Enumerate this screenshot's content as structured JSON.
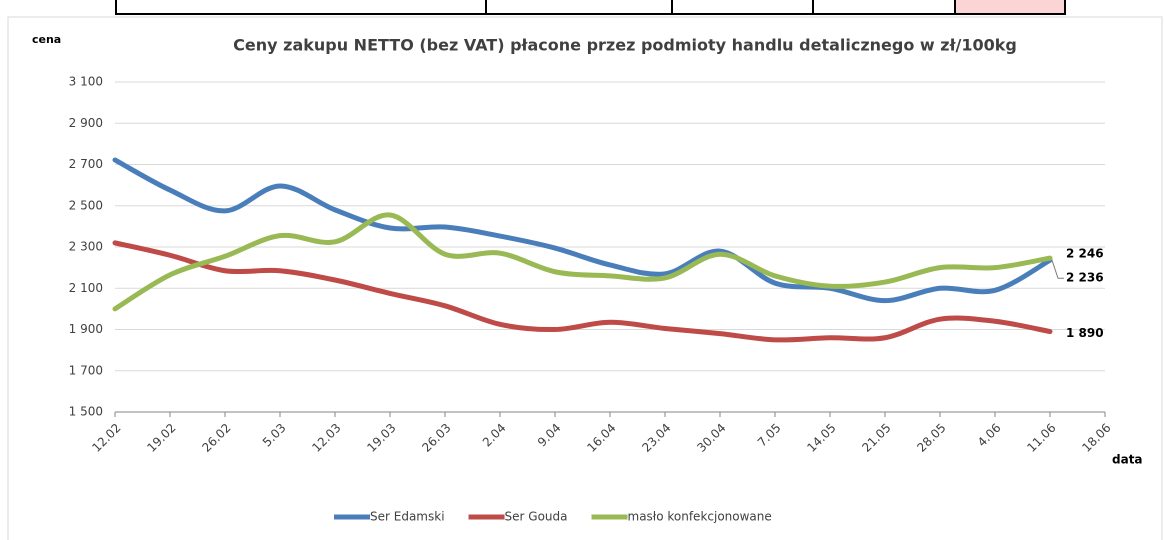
{
  "chart_data": {
    "type": "line",
    "title": "Ceny zakupu NETTO (bez VAT) płacone przez podmioty handlu detalicznego w zł/100kg",
    "y_label": "cena",
    "x_label": "data",
    "categories": [
      "12.02",
      "19.02",
      "26.02",
      "5.03",
      "12.03",
      "19.03",
      "26.03",
      "2.04",
      "9.04",
      "16.04",
      "23.04",
      "30.04",
      "7.05",
      "14.05",
      "21.05",
      "28.05",
      "4.06",
      "11.06",
      "18.06"
    ],
    "series": [
      {
        "name": "Ser Edamski",
        "color": "#4a7ebb",
        "values": [
          2722,
          2576,
          2475,
          2596,
          2480,
          2392,
          2397,
          2353,
          2295,
          2213,
          2170,
          2280,
          2125,
          2100,
          2040,
          2100,
          2090,
          2236,
          null
        ],
        "value_labels": [
          null,
          null,
          null,
          null,
          null,
          null,
          null,
          null,
          null,
          null,
          null,
          null,
          null,
          null,
          null,
          null,
          null,
          "2 236",
          null
        ]
      },
      {
        "name": "Ser Gouda",
        "color": "#be4b48",
        "values": [
          2320,
          2260,
          2185,
          2185,
          2140,
          2075,
          2015,
          1925,
          1900,
          1935,
          1905,
          1880,
          1850,
          1860,
          1860,
          1950,
          1940,
          1890,
          null
        ],
        "value_labels": [
          null,
          null,
          null,
          null,
          null,
          null,
          null,
          null,
          null,
          null,
          null,
          null,
          null,
          null,
          null,
          null,
          null,
          "1 890",
          null
        ]
      },
      {
        "name": "masło konfekcjonowane",
        "color": "#98b954",
        "values": [
          2000,
          2165,
          2255,
          2355,
          2325,
          2455,
          2265,
          2270,
          2180,
          2160,
          2150,
          2265,
          2160,
          2110,
          2130,
          2200,
          2200,
          2246,
          null
        ],
        "value_labels": [
          null,
          null,
          null,
          null,
          null,
          null,
          null,
          null,
          null,
          null,
          null,
          null,
          null,
          null,
          null,
          null,
          null,
          "2 246",
          null
        ]
      }
    ],
    "ylim": [
      1500,
      3100
    ],
    "yticks": [
      {
        "value": 1500,
        "label": "1 500"
      },
      {
        "value": 1700,
        "label": "1 700"
      },
      {
        "value": 1900,
        "label": "1 900"
      },
      {
        "value": 2100,
        "label": "2 100"
      },
      {
        "value": 2300,
        "label": "2 300"
      },
      {
        "value": 2500,
        "label": "2 500"
      },
      {
        "value": 2700,
        "label": "2 700"
      },
      {
        "value": 2900,
        "label": "2 900"
      },
      {
        "value": 3100,
        "label": "3 100"
      }
    ],
    "grid": true,
    "legend": "bottom"
  }
}
